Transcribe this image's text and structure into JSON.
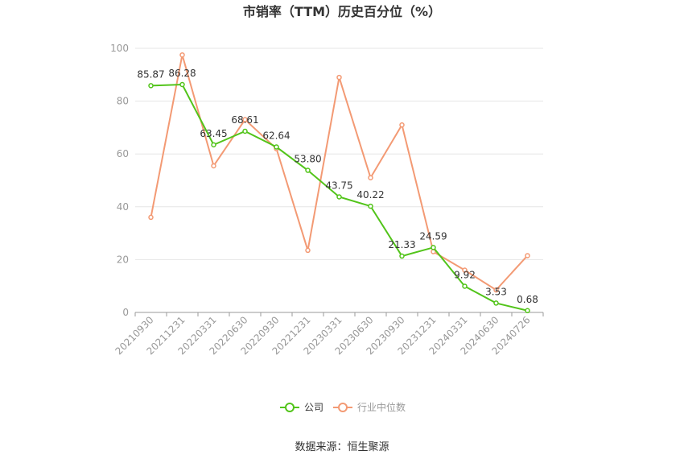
{
  "title": "市销率（TTM）历史百分位（%）",
  "source": "数据来源：恒生聚源",
  "chart_data": {
    "type": "line",
    "title": "市销率（TTM）历史百分位（%）",
    "categories": [
      "20210930",
      "20211231",
      "20220331",
      "20220630",
      "20220930",
      "20221231",
      "20230331",
      "20230630",
      "20230930",
      "20231231",
      "20240331",
      "20240630",
      "20240726"
    ],
    "ylim": [
      0,
      100
    ],
    "yticks": [
      0,
      20,
      40,
      60,
      80,
      100
    ],
    "grid": true,
    "legend_position": "bottom",
    "series": [
      {
        "name": "公司",
        "color": "#52c41a",
        "values": [
          85.87,
          86.28,
          63.45,
          68.61,
          62.64,
          53.8,
          43.75,
          40.22,
          21.33,
          24.59,
          9.92,
          3.53,
          0.68
        ],
        "labels": [
          "85.87",
          "86.28",
          "63.45",
          "68.61",
          "62.64",
          "53.80",
          "43.75",
          "40.22",
          "21.33",
          "24.59",
          "9.92",
          "3.53",
          "0.68"
        ]
      },
      {
        "name": "行业中位数",
        "color": "#f39a74",
        "values": [
          36,
          97.5,
          55.5,
          73,
          62,
          23.5,
          89,
          51,
          71,
          23,
          16,
          8.5,
          21.5
        ]
      }
    ]
  }
}
